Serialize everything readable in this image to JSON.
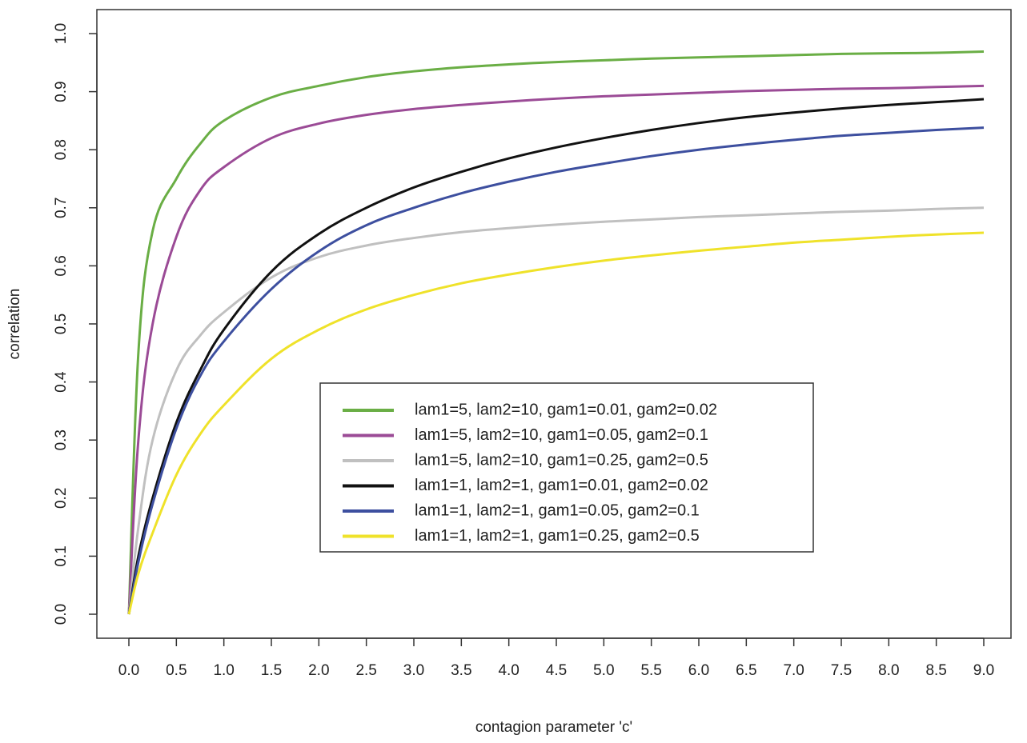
{
  "chart_data": {
    "type": "line",
    "title": "",
    "xlabel": "contagion parameter 'c'",
    "ylabel": "correlation",
    "xlim": [
      0,
      9
    ],
    "ylim": [
      0,
      1
    ],
    "x_ticks": [
      "0.0",
      "0.5",
      "1.0",
      "1.5",
      "2.0",
      "2.5",
      "3.0",
      "3.5",
      "4.0",
      "4.5",
      "5.0",
      "5.5",
      "6.0",
      "6.5",
      "7.0",
      "7.5",
      "8.0",
      "8.5",
      "9.0"
    ],
    "y_ticks": [
      "0.0",
      "0.1",
      "0.2",
      "0.3",
      "0.4",
      "0.5",
      "0.6",
      "0.7",
      "0.8",
      "0.9",
      "1.0"
    ],
    "grid": false,
    "legend_position": "center-right",
    "x": [
      0,
      0.1,
      0.25,
      0.5,
      0.75,
      1.0,
      1.5,
      2.0,
      2.5,
      3.0,
      3.5,
      4.0,
      4.5,
      5.0,
      5.5,
      6.0,
      6.5,
      7.0,
      7.5,
      8.0,
      8.5,
      9.0
    ],
    "series": [
      {
        "name": "lam1=5, lam2=10, gam1=0.01, gam2=0.02",
        "color": "#6aae45",
        "values": [
          0.0,
          0.45,
          0.66,
          0.75,
          0.81,
          0.85,
          0.89,
          0.91,
          0.925,
          0.935,
          0.942,
          0.947,
          0.951,
          0.954,
          0.957,
          0.959,
          0.961,
          0.963,
          0.965,
          0.966,
          0.967,
          0.969
        ]
      },
      {
        "name": "lam1=5, lam2=10, gam1=0.05, gam2=0.1",
        "color": "#9b4b96",
        "values": [
          0.0,
          0.3,
          0.5,
          0.65,
          0.73,
          0.77,
          0.82,
          0.845,
          0.86,
          0.87,
          0.877,
          0.883,
          0.888,
          0.892,
          0.895,
          0.898,
          0.901,
          0.903,
          0.905,
          0.906,
          0.908,
          0.91
        ]
      },
      {
        "name": "lam1=5, lam2=10, gam1=0.25, gam2=0.5",
        "color": "#c0c0c0",
        "values": [
          0.0,
          0.15,
          0.3,
          0.42,
          0.48,
          0.52,
          0.58,
          0.615,
          0.635,
          0.648,
          0.658,
          0.665,
          0.671,
          0.676,
          0.68,
          0.684,
          0.687,
          0.69,
          0.693,
          0.695,
          0.698,
          0.7
        ]
      },
      {
        "name": "lam1=1, lam2=1, gam1=0.01, gam2=0.02",
        "color": "#111111",
        "values": [
          0.0,
          0.1,
          0.2,
          0.33,
          0.42,
          0.49,
          0.59,
          0.655,
          0.7,
          0.735,
          0.762,
          0.785,
          0.804,
          0.82,
          0.834,
          0.846,
          0.856,
          0.864,
          0.871,
          0.877,
          0.882,
          0.887
        ]
      },
      {
        "name": "lam1=1, lam2=1, gam1=0.05, gam2=0.1",
        "color": "#3d4f9f",
        "values": [
          0.0,
          0.09,
          0.19,
          0.32,
          0.41,
          0.47,
          0.56,
          0.625,
          0.67,
          0.7,
          0.725,
          0.745,
          0.762,
          0.776,
          0.789,
          0.8,
          0.809,
          0.817,
          0.824,
          0.829,
          0.834,
          0.838
        ]
      },
      {
        "name": "lam1=1, lam2=1, gam1=0.25, gam2=0.5",
        "color": "#efe22a",
        "values": [
          0.0,
          0.07,
          0.14,
          0.24,
          0.31,
          0.36,
          0.44,
          0.49,
          0.525,
          0.55,
          0.57,
          0.585,
          0.598,
          0.609,
          0.618,
          0.626,
          0.633,
          0.64,
          0.645,
          0.65,
          0.654,
          0.657
        ]
      }
    ]
  }
}
